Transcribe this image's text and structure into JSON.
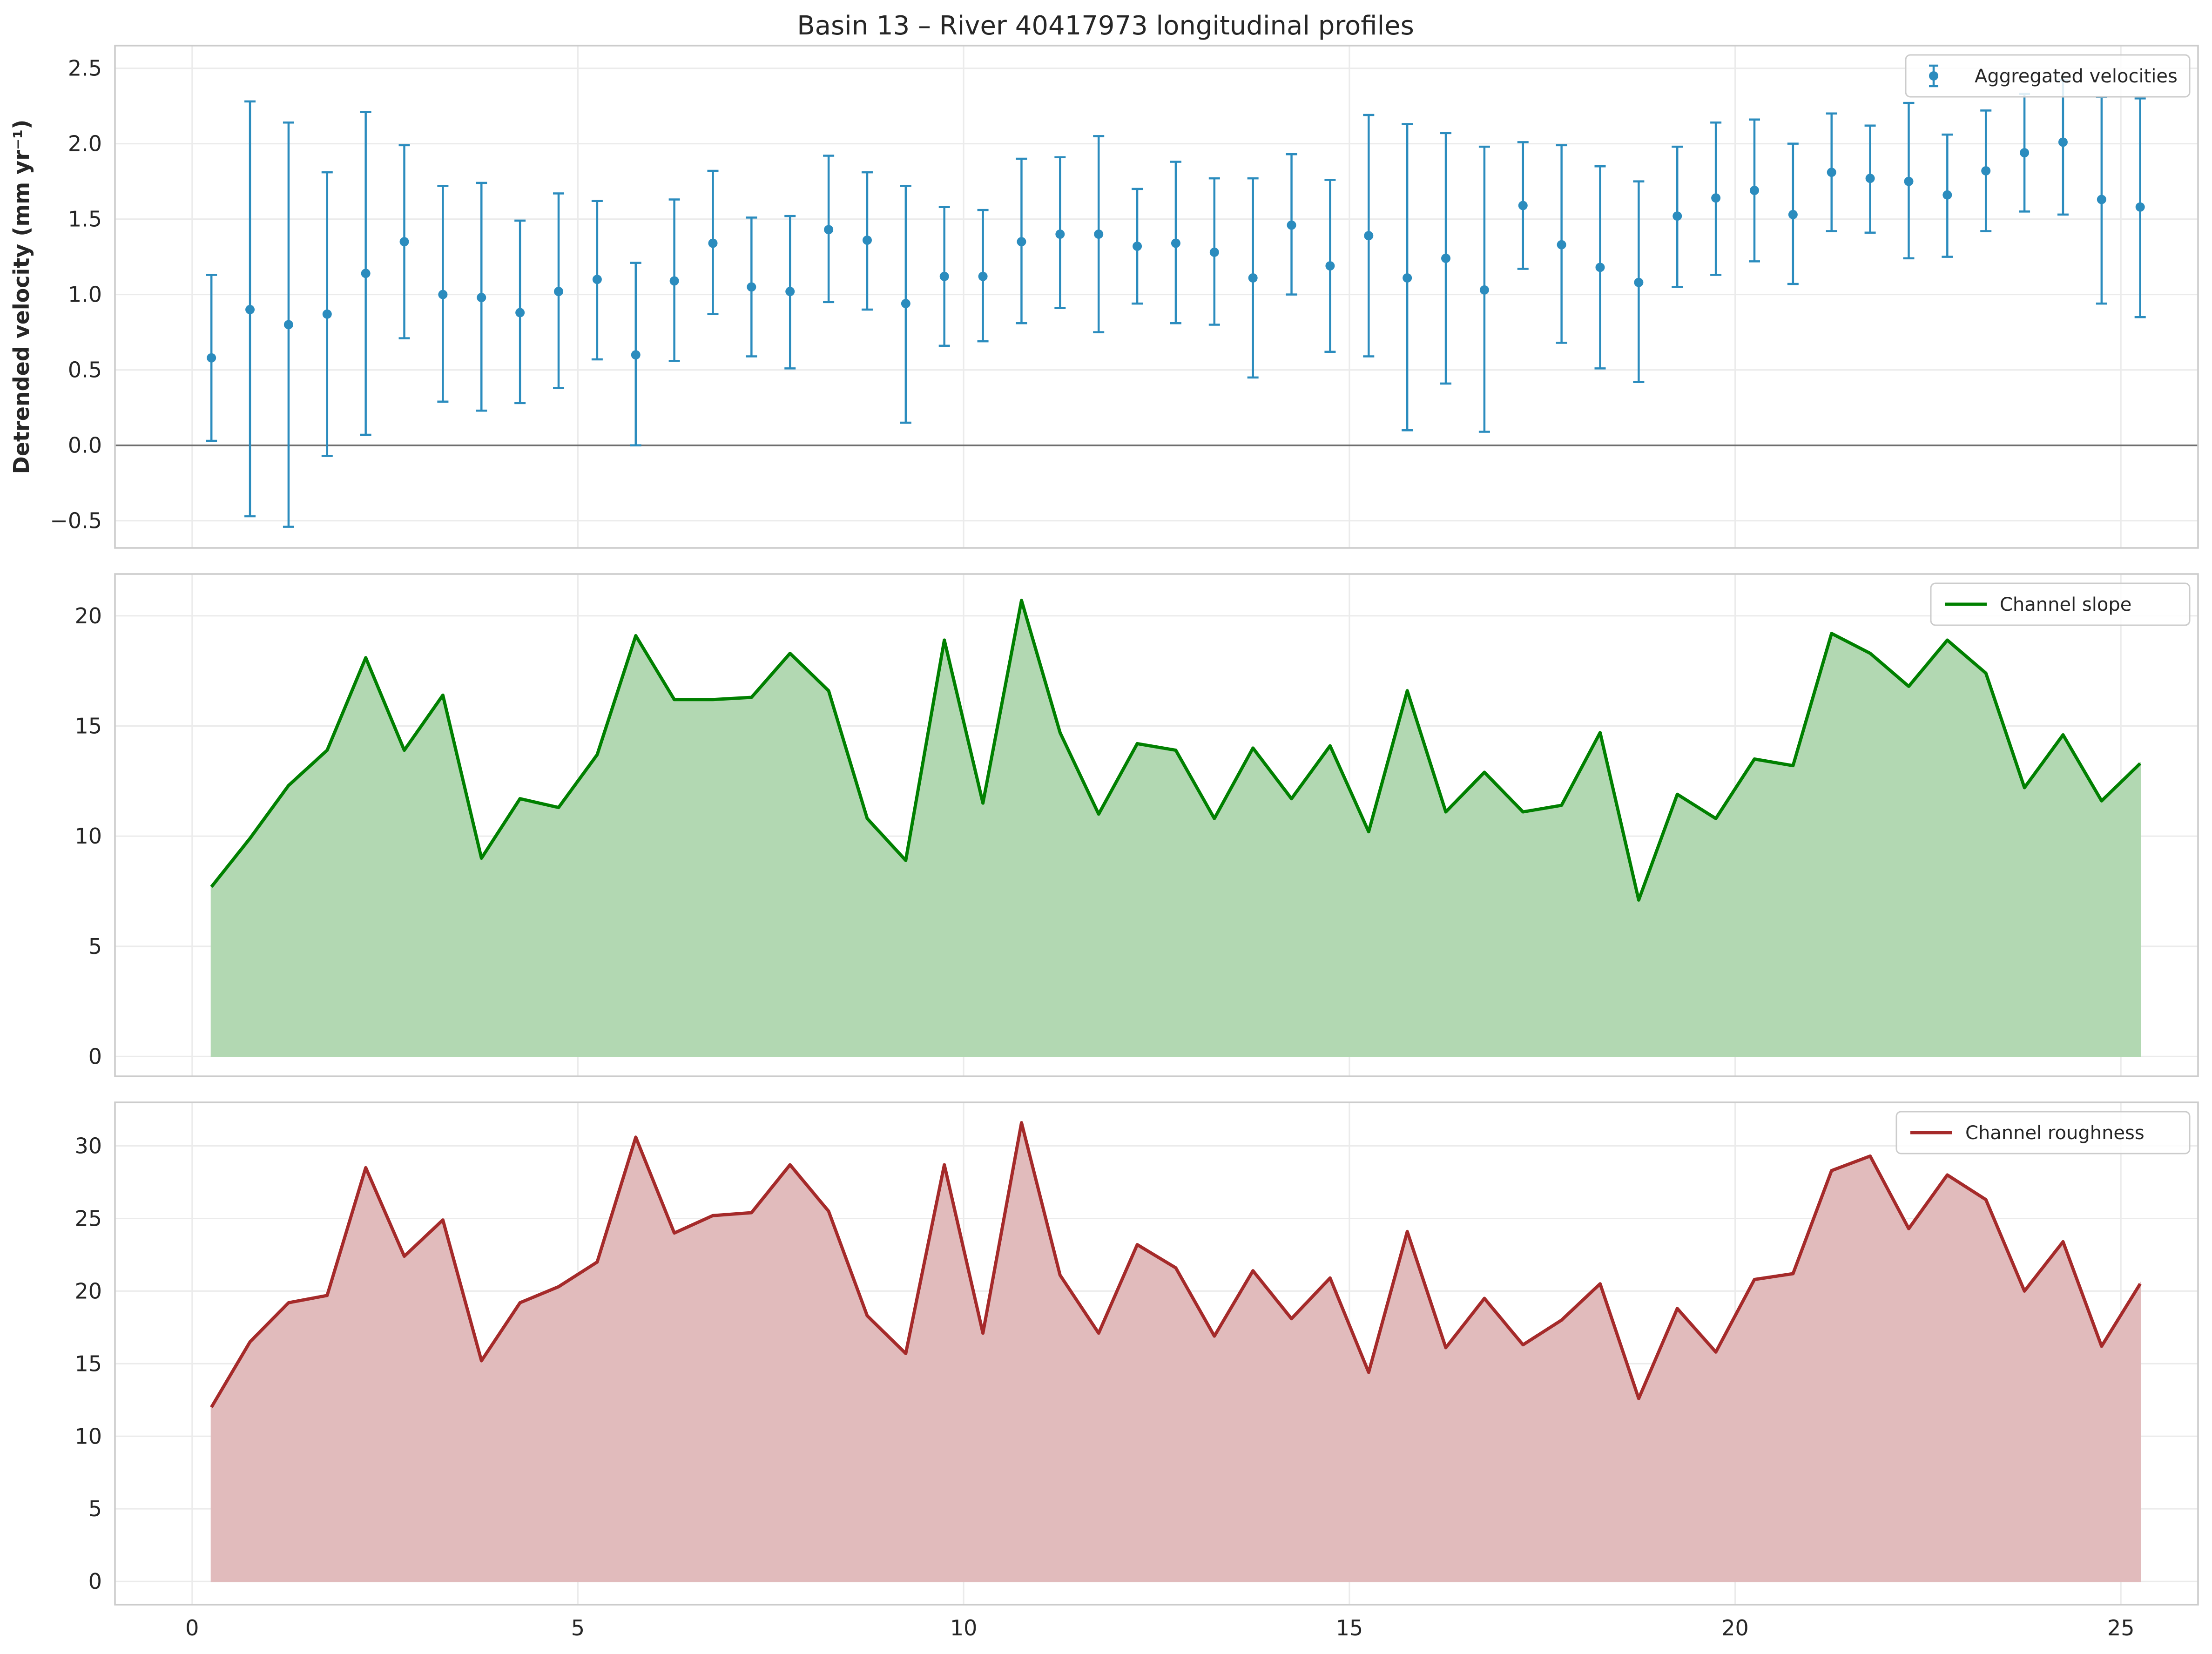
{
  "figure": {
    "title": "Basin 13 – River 40417973 longitudinal profiles"
  },
  "chart_data": [
    {
      "type": "scatter",
      "variant": "errorbar",
      "ylabel": "Detrended velocity (mm yr⁻¹)",
      "ylim": [
        -0.68,
        2.65
      ],
      "xlim": [
        -1.0,
        26.0
      ],
      "y_ticks": [
        "−0.5",
        "0.0",
        "0.5",
        "1.0",
        "1.5",
        "2.0",
        "2.5"
      ],
      "y_tick_values": [
        -0.5,
        0.0,
        0.5,
        1.0,
        1.5,
        2.0,
        2.5
      ],
      "grid": true,
      "zero_line": true,
      "legend": "top-right",
      "series": [
        {
          "name": "Aggregated velocities",
          "color": "#2b8cbe",
          "x": [
            0.25,
            0.75,
            1.25,
            1.75,
            2.25,
            2.75,
            3.25,
            3.75,
            4.25,
            4.75,
            5.25,
            5.75,
            6.25,
            6.75,
            7.25,
            7.75,
            8.25,
            8.75,
            9.25,
            9.75,
            10.25,
            10.75,
            11.25,
            11.75,
            12.25,
            12.75,
            13.25,
            13.75,
            14.25,
            14.75,
            15.25,
            15.75,
            16.25,
            16.75,
            17.25,
            17.75,
            18.25,
            18.75,
            19.25,
            19.75,
            20.25,
            20.75,
            21.25,
            21.75,
            22.25,
            22.75,
            23.25,
            23.75,
            24.25,
            24.75,
            25.25
          ],
          "y": [
            0.58,
            0.9,
            0.8,
            0.87,
            1.14,
            1.35,
            1.0,
            0.98,
            0.88,
            1.02,
            1.1,
            0.6,
            1.09,
            1.34,
            1.05,
            1.02,
            1.43,
            1.36,
            0.94,
            1.12,
            1.12,
            1.35,
            1.4,
            1.4,
            1.32,
            1.34,
            1.28,
            1.11,
            1.46,
            1.19,
            1.39,
            1.11,
            1.24,
            1.03,
            1.59,
            1.33,
            1.18,
            1.08,
            1.52,
            1.64,
            1.69,
            1.53,
            1.81,
            1.77,
            1.75,
            1.66,
            1.82,
            1.94,
            2.01,
            1.63,
            1.58
          ],
          "y_low": [
            0.03,
            -0.47,
            -0.54,
            -0.07,
            0.07,
            0.71,
            0.29,
            0.23,
            0.28,
            0.38,
            0.57,
            0.0,
            0.56,
            0.87,
            0.59,
            0.51,
            0.95,
            0.9,
            0.15,
            0.66,
            0.69,
            0.81,
            0.91,
            0.75,
            0.94,
            0.81,
            0.8,
            0.45,
            1.0,
            0.62,
            0.59,
            0.1,
            0.41,
            0.09,
            1.17,
            0.68,
            0.51,
            0.42,
            1.05,
            1.13,
            1.22,
            1.07,
            1.42,
            1.41,
            1.24,
            1.25,
            1.42,
            1.55,
            1.53,
            0.94,
            0.85
          ],
          "y_high": [
            1.13,
            2.28,
            2.14,
            1.81,
            2.21,
            1.99,
            1.72,
            1.74,
            1.49,
            1.67,
            1.62,
            1.21,
            1.63,
            1.82,
            1.51,
            1.52,
            1.92,
            1.81,
            1.72,
            1.58,
            1.56,
            1.9,
            1.91,
            2.05,
            1.7,
            1.88,
            1.77,
            1.77,
            1.93,
            1.76,
            2.19,
            2.13,
            2.07,
            1.98,
            2.01,
            1.99,
            1.85,
            1.75,
            1.98,
            2.14,
            2.16,
            2.0,
            2.2,
            2.12,
            2.27,
            2.06,
            2.22,
            2.33,
            2.42,
            2.31,
            2.3
          ]
        }
      ]
    },
    {
      "type": "area",
      "ylim": [
        -0.9,
        21.9
      ],
      "xlim": [
        -1.0,
        26.0
      ],
      "y_ticks": [
        "0",
        "5",
        "10",
        "15",
        "20"
      ],
      "y_tick_values": [
        0,
        5,
        10,
        15,
        20
      ],
      "grid": true,
      "legend": "top-right",
      "series": [
        {
          "name": "Channel slope",
          "color": "#008000",
          "fill": "#b2d8b2",
          "x": [
            0.25,
            0.75,
            1.25,
            1.75,
            2.25,
            2.75,
            3.25,
            3.75,
            4.25,
            4.75,
            5.25,
            5.75,
            6.25,
            6.75,
            7.25,
            7.75,
            8.25,
            8.75,
            9.25,
            9.75,
            10.25,
            10.75,
            11.25,
            11.75,
            12.25,
            12.75,
            13.25,
            13.75,
            14.25,
            14.75,
            15.25,
            15.75,
            16.25,
            16.75,
            17.25,
            17.75,
            18.25,
            18.75,
            19.25,
            19.75,
            20.25,
            20.75,
            21.25,
            21.75,
            22.25,
            22.75,
            23.25,
            23.75,
            24.25,
            24.75,
            25.25
          ],
          "y": [
            7.7,
            9.9,
            12.3,
            13.9,
            18.1,
            13.9,
            16.4,
            9.0,
            11.7,
            11.3,
            13.7,
            19.1,
            16.2,
            16.2,
            16.3,
            18.3,
            16.6,
            10.8,
            8.9,
            18.9,
            11.5,
            20.7,
            14.7,
            11.0,
            14.2,
            13.9,
            10.8,
            14.0,
            11.7,
            14.1,
            10.2,
            16.6,
            11.1,
            12.9,
            11.1,
            11.4,
            14.7,
            7.1,
            11.9,
            10.8,
            13.5,
            13.2,
            19.2,
            18.3,
            16.8,
            18.9,
            17.4,
            12.2,
            14.6,
            11.6,
            13.3
          ]
        }
      ]
    },
    {
      "type": "area",
      "ylim": [
        -1.6,
        33.0
      ],
      "xlim": [
        -1.0,
        26.0
      ],
      "y_ticks": [
        "0",
        "5",
        "10",
        "15",
        "20",
        "25",
        "30"
      ],
      "y_tick_values": [
        0,
        5,
        10,
        15,
        20,
        25,
        30
      ],
      "x_ticks": [
        "0",
        "5",
        "10",
        "15",
        "20",
        "25"
      ],
      "x_tick_values": [
        0,
        5,
        10,
        15,
        20,
        25
      ],
      "grid": true,
      "legend": "top-right",
      "series": [
        {
          "name": "Channel roughness",
          "color": "#a52a2a",
          "fill": "#e1bbbc",
          "x": [
            0.25,
            0.75,
            1.25,
            1.75,
            2.25,
            2.75,
            3.25,
            3.75,
            4.25,
            4.75,
            5.25,
            5.75,
            6.25,
            6.75,
            7.25,
            7.75,
            8.25,
            8.75,
            9.25,
            9.75,
            10.25,
            10.75,
            11.25,
            11.75,
            12.25,
            12.75,
            13.25,
            13.75,
            14.25,
            14.75,
            15.25,
            15.75,
            16.25,
            16.75,
            17.25,
            17.75,
            18.25,
            18.75,
            19.25,
            19.75,
            20.25,
            20.75,
            21.25,
            21.75,
            22.25,
            22.75,
            23.25,
            23.75,
            24.25,
            24.75,
            25.25
          ],
          "y": [
            12.0,
            16.5,
            19.2,
            19.7,
            28.5,
            22.4,
            24.9,
            15.2,
            19.2,
            20.3,
            22.0,
            30.6,
            24.0,
            25.2,
            25.4,
            28.7,
            25.5,
            18.3,
            15.7,
            28.7,
            17.1,
            31.6,
            21.1,
            17.1,
            23.2,
            21.6,
            16.9,
            21.4,
            18.1,
            20.9,
            14.4,
            24.1,
            16.1,
            19.5,
            16.3,
            18.0,
            20.5,
            12.6,
            18.8,
            15.8,
            20.8,
            21.2,
            28.3,
            29.3,
            24.3,
            28.0,
            26.3,
            20.0,
            23.4,
            16.2,
            20.5
          ]
        }
      ]
    }
  ]
}
